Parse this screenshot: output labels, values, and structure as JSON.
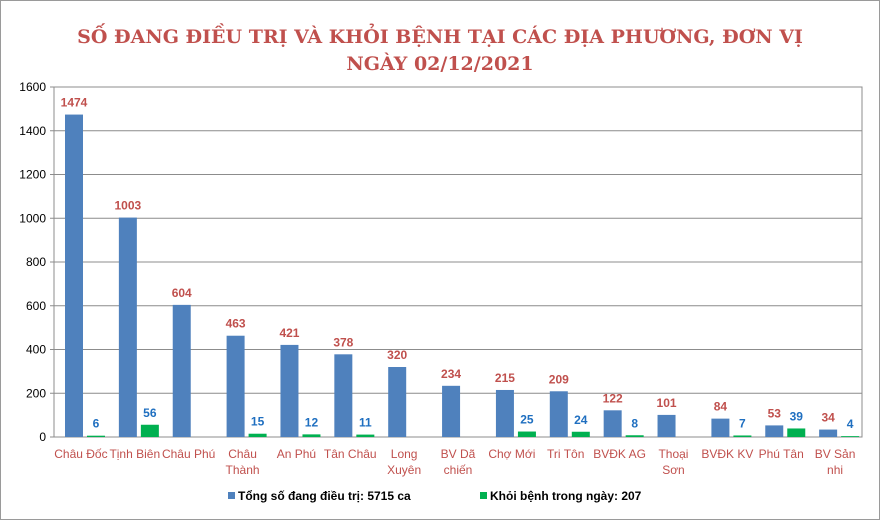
{
  "chart_data": {
    "type": "bar",
    "title": "SỐ ĐANG ĐIỀU TRỊ VÀ KHỎI BỆNH TẠI CÁC ĐỊA PHƯƠNG, ĐƠN VỊ",
    "subtitle": "NGÀY 02/12/2021",
    "categories": [
      [
        "Châu Đốc"
      ],
      [
        "Tịnh Biên"
      ],
      [
        "Châu Phú"
      ],
      [
        "Châu",
        "Thành"
      ],
      [
        "An Phú"
      ],
      [
        "Tân Châu"
      ],
      [
        "Long",
        "Xuyên"
      ],
      [
        "BV Dã",
        "chiến"
      ],
      [
        "Chợ Mới"
      ],
      [
        "Tri Tôn"
      ],
      [
        "BVĐK AG"
      ],
      [
        "Thoại",
        "Sơn"
      ],
      [
        "BVĐK KV"
      ],
      [
        "Phú Tân"
      ],
      [
        "BV Sản",
        "nhi"
      ]
    ],
    "series": [
      {
        "name": "Tổng số đang điều trị: 5715 ca",
        "color": "#4f81bd",
        "label_color": "#c0504d",
        "values": [
          1474,
          1003,
          604,
          463,
          421,
          378,
          320,
          234,
          215,
          209,
          122,
          101,
          84,
          53,
          34
        ]
      },
      {
        "name": "Khỏi bệnh trong ngày: 207",
        "color": "#00b050",
        "label_color": "#1f6fc0",
        "values": [
          6,
          56,
          null,
          15,
          12,
          11,
          null,
          null,
          25,
          24,
          8,
          null,
          7,
          39,
          4
        ]
      }
    ],
    "ylim": [
      0,
      1600
    ],
    "yticks": [
      0,
      200,
      400,
      600,
      800,
      1000,
      1200,
      1400,
      1600
    ],
    "grid": true,
    "legend_position": "bottom"
  }
}
